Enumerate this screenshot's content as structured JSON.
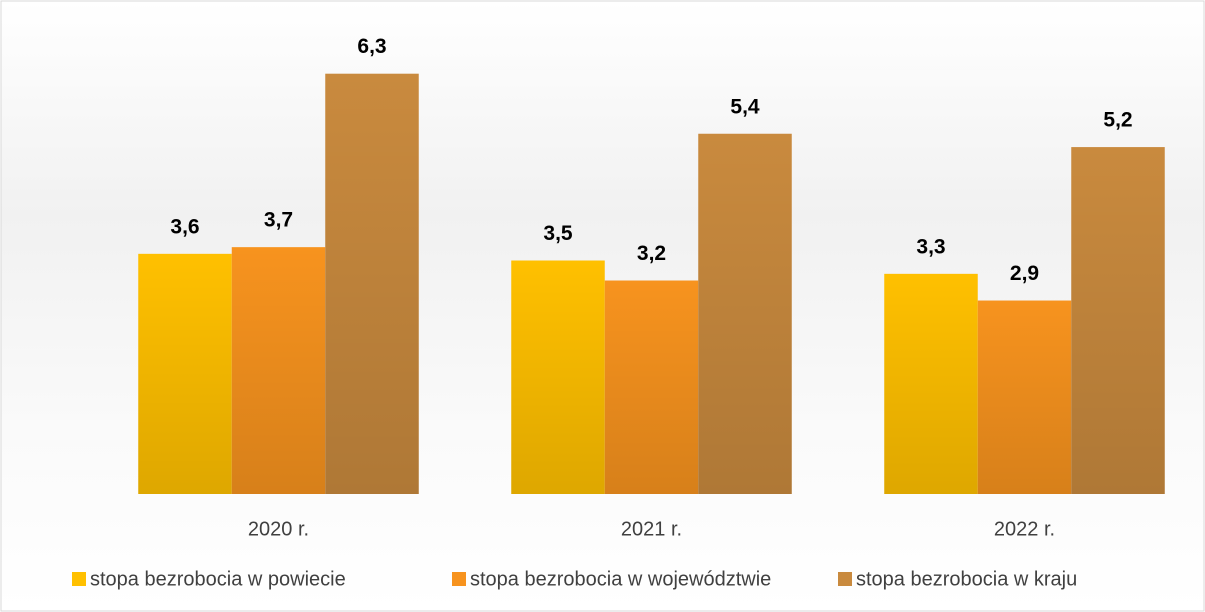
{
  "chart_data": {
    "type": "bar",
    "categories": [
      "2020 r.",
      "2021 r.",
      "2022 r."
    ],
    "series": [
      {
        "name": "stopa bezrobocia w powiecie",
        "color": "#ffc000",
        "values": [
          3.6,
          3.5,
          3.3
        ],
        "value_labels": [
          "3,6",
          "3,5",
          "3,3"
        ]
      },
      {
        "name": "stopa bezrobocia w województwie",
        "color": "#f7931e",
        "values": [
          3.7,
          3.2,
          2.9
        ],
        "value_labels": [
          "3,7",
          "3,2",
          "2,9"
        ]
      },
      {
        "name": "stopa bezrobocia w kraju",
        "color": "#c98a3e",
        "values": [
          6.3,
          5.4,
          5.2
        ],
        "value_labels": [
          "6,3",
          "5,4",
          "5,2"
        ]
      }
    ],
    "ylim": [
      0,
      7
    ],
    "legend": "bottom"
  }
}
